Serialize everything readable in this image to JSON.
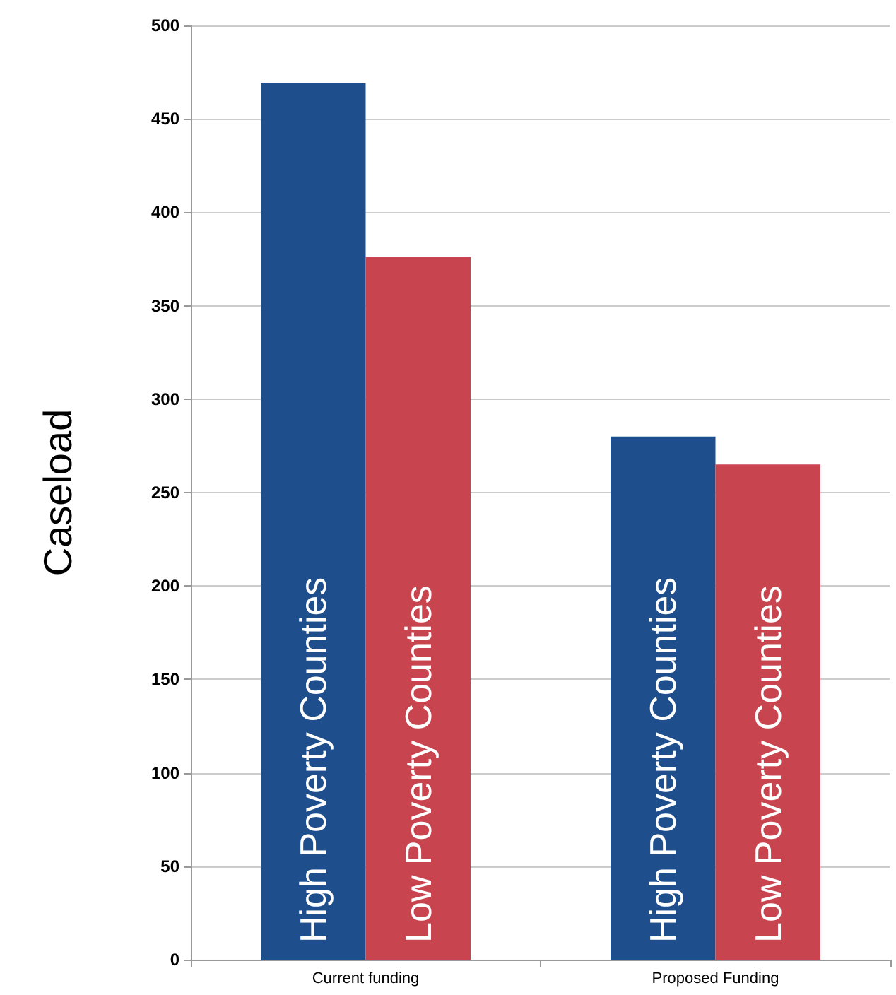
{
  "chart_data": {
    "type": "bar",
    "ylabel": "Caseload",
    "categories": [
      "Current funding",
      "Proposed Funding"
    ],
    "series": [
      {
        "name": "High Poverty Counties",
        "color": "#1f4e8c",
        "values": [
          469,
          280
        ]
      },
      {
        "name": "Low Poverty Counties",
        "color": "#c8444f",
        "values": [
          376,
          265
        ]
      }
    ],
    "ylim": [
      0,
      500
    ],
    "yticks": [
      0,
      50,
      100,
      150,
      200,
      250,
      300,
      350,
      400,
      450,
      500
    ],
    "grid": "y",
    "legend": false
  }
}
